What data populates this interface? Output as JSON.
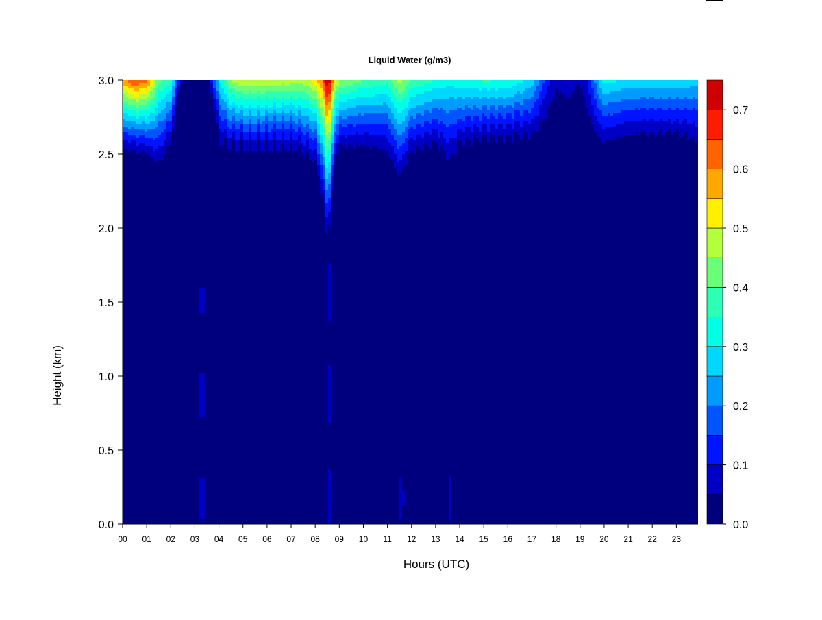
{
  "chart_data": {
    "type": "heatmap",
    "title": "Liquid Water (g/m3)",
    "xlabel": "Hours (UTC)",
    "ylabel": "Height (km)",
    "x_tick_labels": [
      "00",
      "01",
      "02",
      "03",
      "04",
      "05",
      "06",
      "07",
      "08",
      "09",
      "10",
      "11",
      "12",
      "13",
      "14",
      "15",
      "16",
      "17",
      "18",
      "19",
      "20",
      "21",
      "22",
      "23"
    ],
    "y_tick_labels": [
      "0.0",
      "0.5",
      "1.0",
      "1.5",
      "2.0",
      "2.5",
      "3.0"
    ],
    "xlim": [
      0,
      23.9
    ],
    "ylim": [
      0.0,
      3.0
    ],
    "colorbar": {
      "tick_labels": [
        "0.0",
        "0.1",
        "0.2",
        "0.3",
        "0.4",
        "0.5",
        "0.6",
        "0.7"
      ],
      "range": [
        0.0,
        0.75
      ],
      "levels": [
        0.0,
        0.05,
        0.1,
        0.15,
        0.2,
        0.25,
        0.3,
        0.35,
        0.4,
        0.45,
        0.5,
        0.55,
        0.6,
        0.65,
        0.7,
        0.75
      ],
      "colors": [
        "#00007f",
        "#0000c4",
        "#0014ff",
        "#0055ff",
        "#009bff",
        "#00d8ff",
        "#00ffe6",
        "#2dffb4",
        "#6aff78",
        "#b4ff3c",
        "#ffef00",
        "#ffa900",
        "#ff6400",
        "#ff1c00",
        "#cf0000",
        "#800000"
      ]
    },
    "cloud_top_profile": {
      "hours": [
        0,
        0.5,
        1,
        1.5,
        2,
        2.4,
        2.8,
        3.2,
        3.6,
        4,
        4.5,
        5,
        6,
        7,
        7.5,
        8,
        8.3,
        8.5,
        8.6,
        8.8,
        9,
        10,
        11,
        11.5,
        12,
        13,
        13.6,
        14,
        15,
        16,
        17,
        17.5,
        18,
        18.5,
        19,
        19.3,
        19.8,
        20,
        21,
        22,
        23,
        23.9
      ],
      "peak_lwc": [
        0.58,
        0.66,
        0.62,
        0.42,
        0.36,
        0.08,
        0.03,
        0.03,
        0.05,
        0.3,
        0.46,
        0.5,
        0.49,
        0.48,
        0.47,
        0.53,
        0.62,
        0.75,
        0.72,
        0.52,
        0.46,
        0.4,
        0.37,
        0.48,
        0.4,
        0.35,
        0.32,
        0.34,
        0.36,
        0.35,
        0.28,
        0.15,
        0.06,
        0.08,
        0.05,
        0.1,
        0.27,
        0.32,
        0.29,
        0.29,
        0.3,
        0.27
      ],
      "cloud_base_km": [
        2.45,
        2.45,
        2.42,
        2.3,
        2.45,
        2.9,
        2.95,
        2.95,
        2.95,
        2.45,
        2.45,
        2.45,
        2.45,
        2.45,
        2.4,
        2.35,
        2.1,
        1.8,
        1.9,
        2.3,
        2.45,
        2.45,
        2.4,
        2.2,
        2.4,
        2.45,
        2.3,
        2.45,
        2.5,
        2.5,
        2.5,
        2.55,
        2.6,
        2.62,
        2.66,
        2.55,
        2.45,
        2.45,
        2.5,
        2.52,
        2.52,
        2.45
      ]
    }
  }
}
